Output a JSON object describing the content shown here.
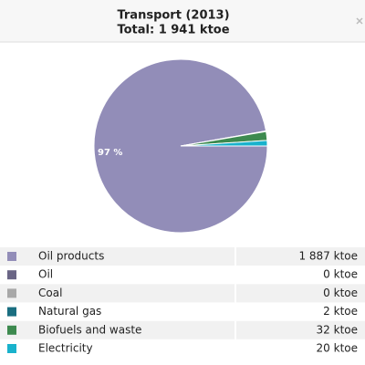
{
  "chart_data": {
    "type": "pie",
    "title": "Transport (2013)",
    "subtitle": "Total: 1 941 ktoe",
    "categories": [
      "Oil products",
      "Oil",
      "Coal",
      "Natural gas",
      "Biofuels and waste",
      "Electricity"
    ],
    "values": [
      1887,
      0,
      0,
      2,
      32,
      20
    ],
    "value_labels": [
      "1 887 ktoe",
      "0 ktoe",
      "0 ktoe",
      "2 ktoe",
      "32 ktoe",
      "20 ktoe"
    ],
    "colors": [
      "#928db8",
      "#6a6585",
      "#a8a8a8",
      "#1a6e80",
      "#3d8a4f",
      "#19b2cc"
    ],
    "annotations": [
      "97 %"
    ]
  }
}
